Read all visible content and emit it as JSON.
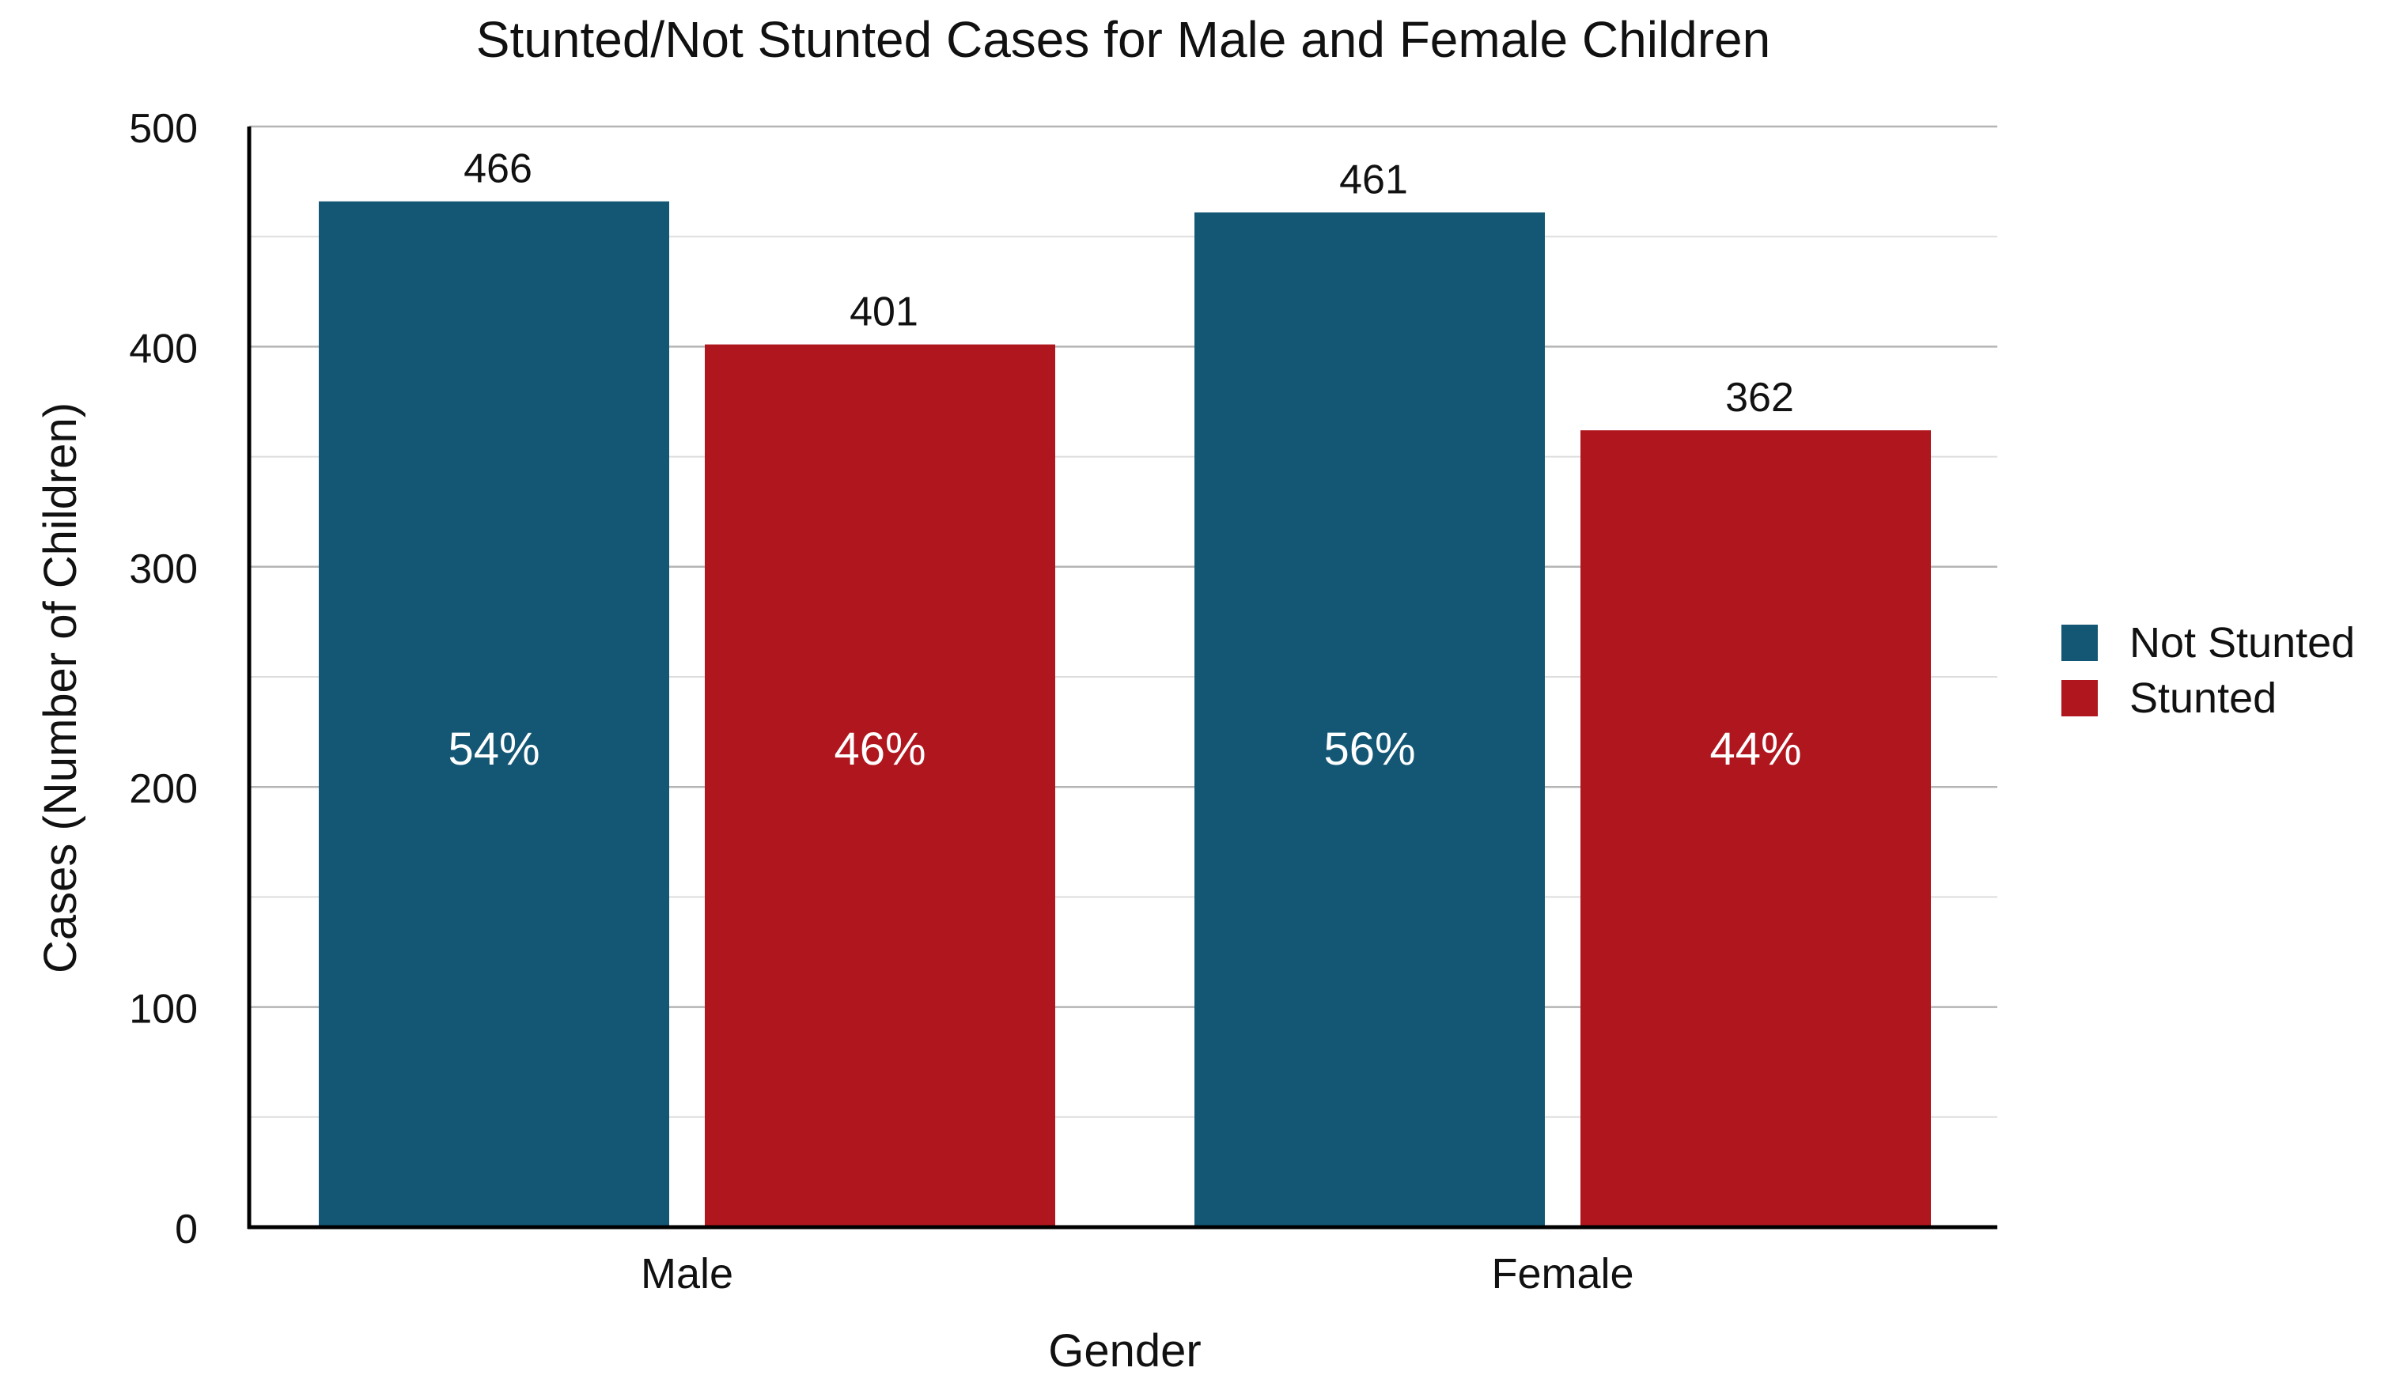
{
  "chart_data": {
    "type": "bar",
    "title": "Stunted/Not Stunted Cases for Male and Female Children",
    "xlabel": "Gender",
    "ylabel": "Cases (Number of Children)",
    "categories": [
      "Male",
      "Female"
    ],
    "ylim": [
      0,
      500
    ],
    "yticks": [
      0,
      100,
      200,
      300,
      400,
      500
    ],
    "grid": true,
    "legend_position": "right",
    "series": [
      {
        "name": "Not Stunted",
        "color": "#135775",
        "values": [
          466,
          461
        ],
        "value_labels": [
          "466",
          "461"
        ],
        "percent_labels": [
          "54%",
          "56%"
        ]
      },
      {
        "name": "Stunted",
        "color": "#b0161e",
        "values": [
          401,
          362
        ],
        "value_labels": [
          "401",
          "362"
        ],
        "percent_labels": [
          "46%",
          "44%"
        ]
      }
    ]
  }
}
